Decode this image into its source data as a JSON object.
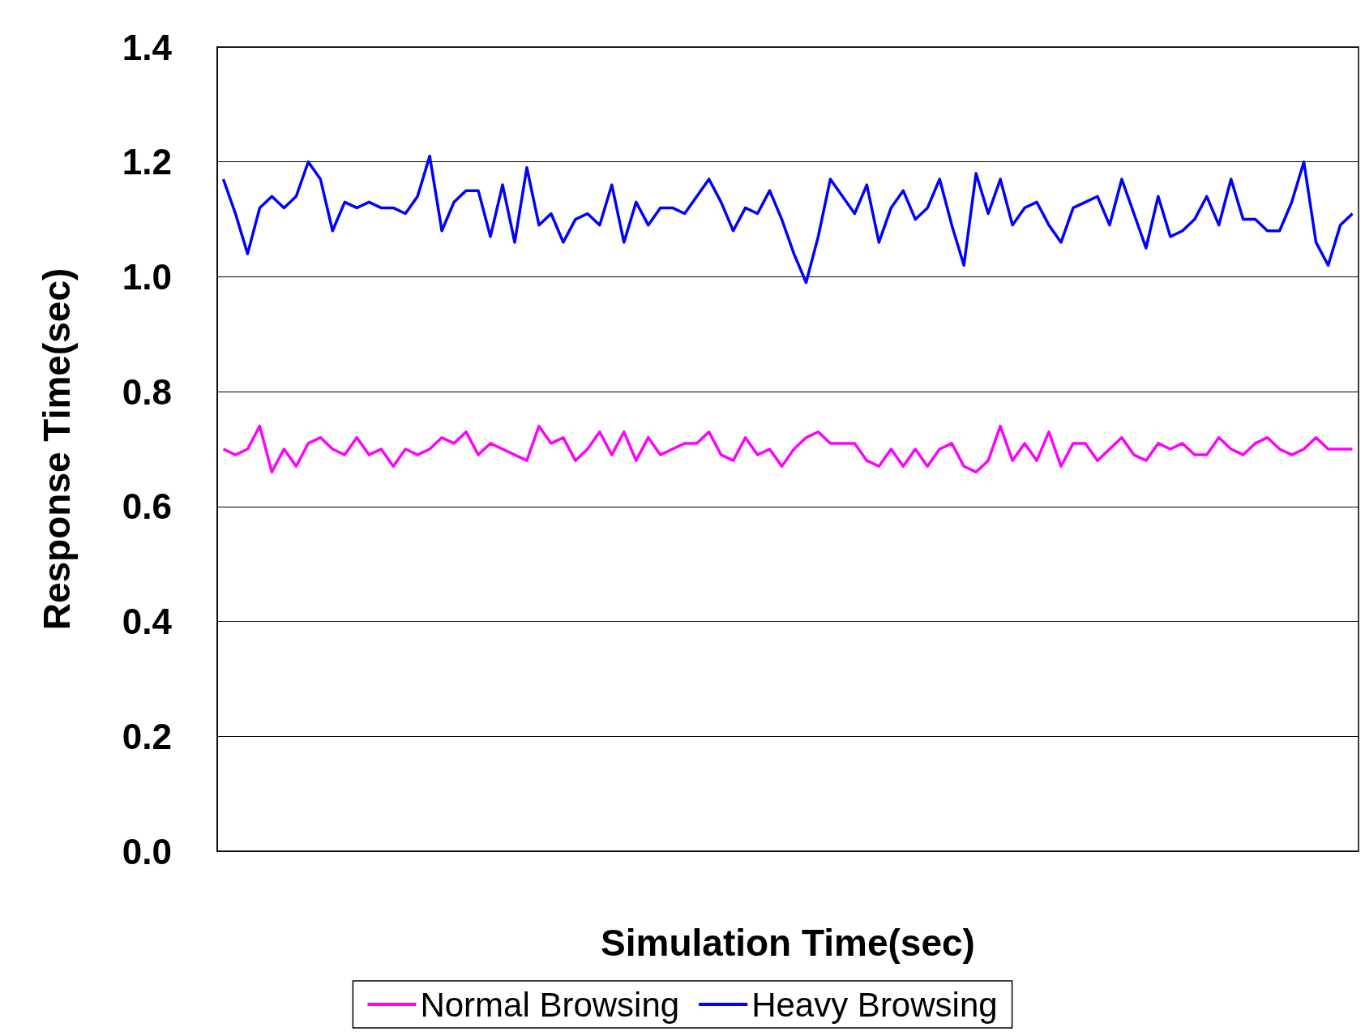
{
  "chart_data": {
    "type": "line",
    "xlabel": "Simulation Time(sec)",
    "ylabel": "Response Time(sec)",
    "categories": [
      null,
      null,
      null,
      null,
      null,
      null,
      null,
      null,
      null,
      null,
      null,
      null,
      null,
      null,
      null,
      null,
      null,
      null,
      null,
      null,
      null,
      null,
      null,
      null,
      null,
      null,
      null,
      null,
      null,
      null,
      null,
      null,
      null,
      null,
      null,
      null,
      null,
      null,
      null,
      null,
      null,
      null,
      null,
      null,
      null,
      null,
      null,
      null,
      null,
      null,
      null,
      null,
      null,
      null,
      null,
      null,
      null,
      null,
      null,
      null,
      null,
      null,
      null,
      null,
      null,
      null,
      null,
      null,
      null,
      null,
      null,
      null,
      null,
      null,
      null,
      null,
      null,
      null,
      null,
      null,
      null,
      null,
      null,
      null,
      null,
      null,
      null,
      null,
      null,
      null,
      null,
      null,
      null,
      null
    ],
    "series": [
      {
        "name": "Normal Browsing",
        "color": "#ff00ff",
        "values": [
          0.7,
          0.69,
          0.7,
          0.74,
          0.66,
          0.7,
          0.67,
          0.71,
          0.72,
          0.7,
          0.69,
          0.72,
          0.69,
          0.7,
          0.67,
          0.7,
          0.69,
          0.7,
          0.72,
          0.71,
          0.73,
          0.69,
          0.71,
          0.7,
          0.69,
          0.68,
          0.74,
          0.71,
          0.72,
          0.68,
          0.7,
          0.73,
          0.69,
          0.73,
          0.68,
          0.72,
          0.69,
          0.7,
          0.71,
          0.71,
          0.73,
          0.69,
          0.68,
          0.72,
          0.69,
          0.7,
          0.67,
          0.7,
          0.72,
          0.73,
          0.71,
          0.71,
          0.71,
          0.68,
          0.67,
          0.7,
          0.67,
          0.7,
          0.67,
          0.7,
          0.71,
          0.67,
          0.66,
          0.68,
          0.74,
          0.68,
          0.71,
          0.68,
          0.73,
          0.67,
          0.71,
          0.71,
          0.68,
          0.7,
          0.72,
          0.69,
          0.68,
          0.71,
          0.7,
          0.71,
          0.69,
          0.69,
          0.72,
          0.7,
          0.69,
          0.71,
          0.72,
          0.7,
          0.69,
          0.7,
          0.72,
          0.7,
          0.7,
          0.7
        ]
      },
      {
        "name": "Heavy Browsing",
        "color": "#0000ff",
        "values": [
          1.17,
          1.11,
          1.04,
          1.12,
          1.14,
          1.12,
          1.14,
          1.2,
          1.17,
          1.08,
          1.13,
          1.12,
          1.13,
          1.12,
          1.12,
          1.11,
          1.14,
          1.21,
          1.08,
          1.13,
          1.15,
          1.15,
          1.07,
          1.16,
          1.06,
          1.19,
          1.09,
          1.11,
          1.06,
          1.1,
          1.11,
          1.09,
          1.16,
          1.06,
          1.13,
          1.09,
          1.12,
          1.12,
          1.11,
          1.14,
          1.17,
          1.13,
          1.08,
          1.12,
          1.11,
          1.15,
          1.1,
          1.04,
          0.99,
          1.07,
          1.17,
          1.14,
          1.11,
          1.16,
          1.06,
          1.12,
          1.15,
          1.1,
          1.12,
          1.17,
          1.09,
          1.02,
          1.18,
          1.11,
          1.17,
          1.09,
          1.12,
          1.13,
          1.09,
          1.06,
          1.12,
          1.13,
          1.14,
          1.09,
          1.17,
          1.11,
          1.05,
          1.14,
          1.07,
          1.08,
          1.1,
          1.14,
          1.09,
          1.17,
          1.1,
          1.1,
          1.08,
          1.08,
          1.13,
          1.2,
          1.06,
          1.02,
          1.09,
          1.11
        ]
      }
    ],
    "ylim": [
      0,
      1.4
    ],
    "yticks": [
      {
        "value": 0,
        "label": "0.0"
      },
      0.2,
      0.4,
      0.6,
      0.8,
      {
        "value": 1,
        "label": "1.0"
      },
      1.2,
      1.4
    ],
    "grid": "y",
    "legend": "bottom",
    "tick_labels": "y",
    "marker": "none",
    "line_style": "solid"
  }
}
